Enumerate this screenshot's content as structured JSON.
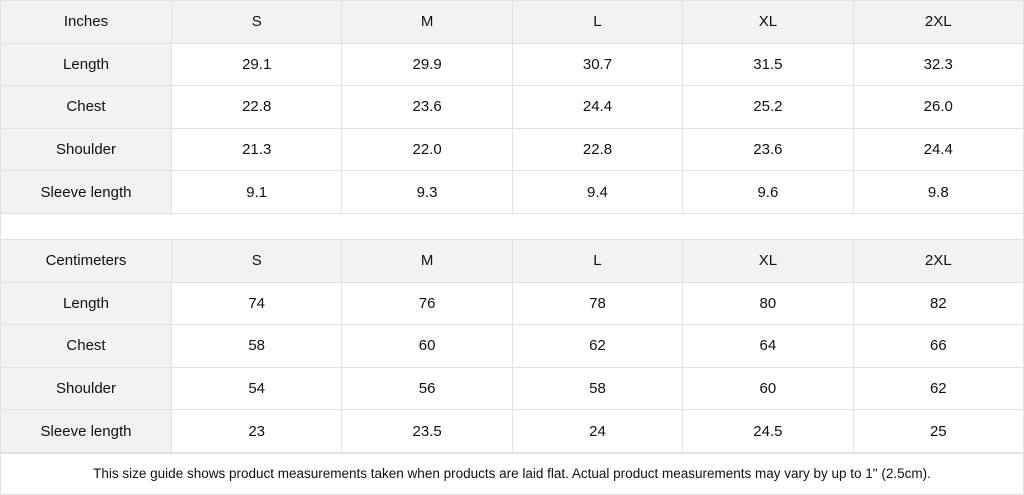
{
  "tables": [
    {
      "unit": "Inches",
      "sizes": [
        "S",
        "M",
        "L",
        "XL",
        "2XL"
      ],
      "rows": [
        {
          "label": "Length",
          "values": [
            "29.1",
            "29.9",
            "30.7",
            "31.5",
            "32.3"
          ]
        },
        {
          "label": "Chest",
          "values": [
            "22.8",
            "23.6",
            "24.4",
            "25.2",
            "26.0"
          ]
        },
        {
          "label": "Shoulder",
          "values": [
            "21.3",
            "22.0",
            "22.8",
            "23.6",
            "24.4"
          ]
        },
        {
          "label": "Sleeve length",
          "values": [
            "9.1",
            "9.3",
            "9.4",
            "9.6",
            "9.8"
          ]
        }
      ]
    },
    {
      "unit": "Centimeters",
      "sizes": [
        "S",
        "M",
        "L",
        "XL",
        "2XL"
      ],
      "rows": [
        {
          "label": "Length",
          "values": [
            "74",
            "76",
            "78",
            "80",
            "82"
          ]
        },
        {
          "label": "Chest",
          "values": [
            "58",
            "60",
            "62",
            "64",
            "66"
          ]
        },
        {
          "label": "Shoulder",
          "values": [
            "54",
            "56",
            "58",
            "60",
            "62"
          ]
        },
        {
          "label": "Sleeve length",
          "values": [
            "23",
            "23.5",
            "24",
            "24.5",
            "25"
          ]
        }
      ]
    }
  ],
  "note": "This size guide shows product measurements taken when products are laid flat.  Actual product measurements may vary by up to 1\" (2.5cm)."
}
